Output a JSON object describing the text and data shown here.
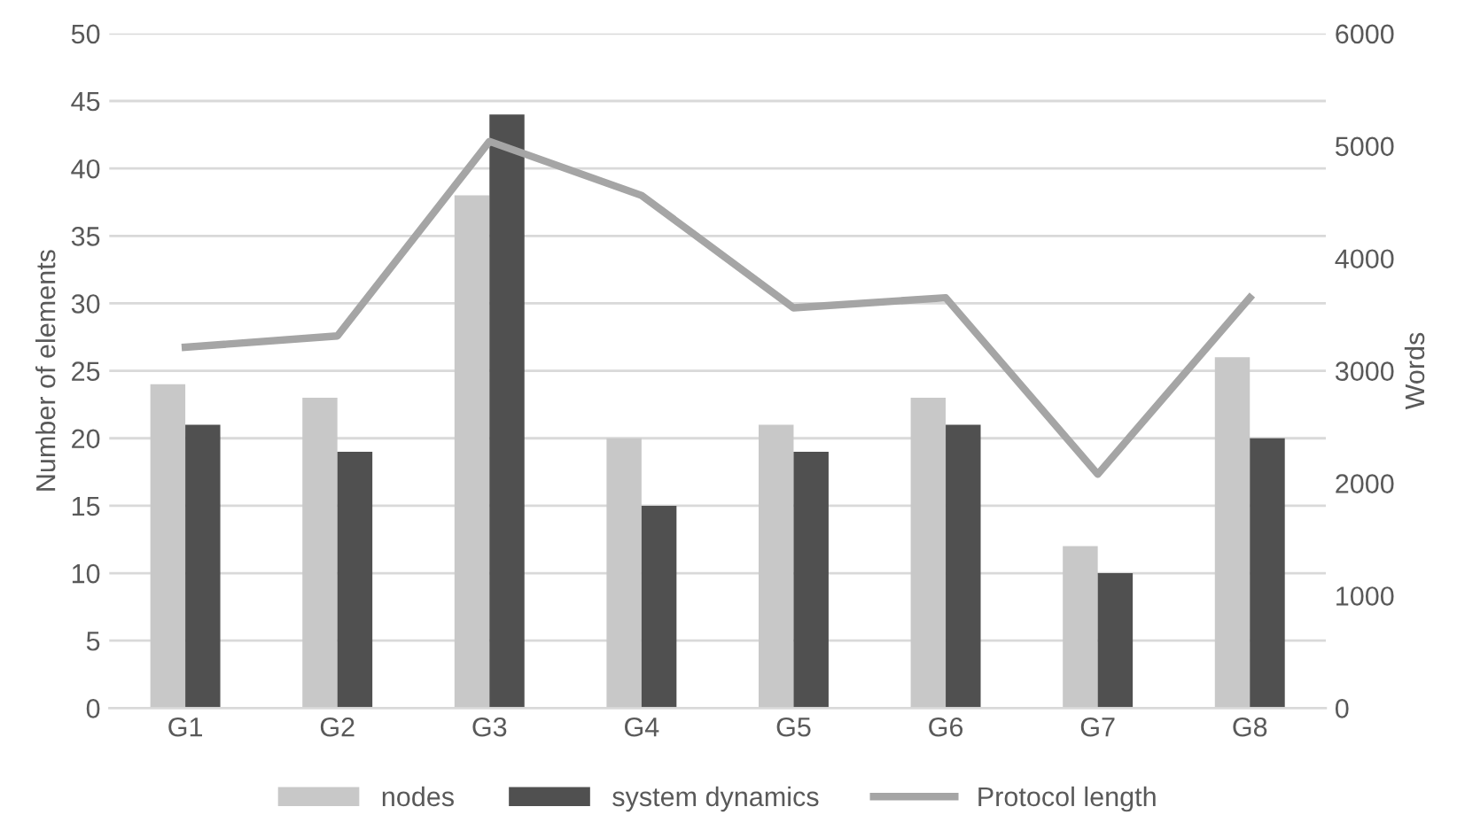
{
  "chart_data": {
    "type": "bar",
    "ylabel": "Number of elements",
    "y2label": "Words",
    "categories": [
      "G1",
      "G2",
      "G3",
      "G4",
      "G5",
      "G6",
      "G7",
      "G8"
    ],
    "series": [
      {
        "name": "nodes",
        "color": "#c8c8c8",
        "values": [
          24,
          23,
          38,
          20,
          21,
          23,
          12,
          26
        ]
      },
      {
        "name": "system dynamics",
        "color": "#505050",
        "values": [
          21,
          19,
          44,
          15,
          19,
          21,
          10,
          20
        ]
      },
      {
        "name": "Protocol length",
        "type": "line",
        "axis": "y2",
        "color": "#a5a5a5",
        "values": [
          3210,
          3310,
          5040,
          4560,
          3560,
          3650,
          2080,
          3650
        ]
      }
    ],
    "ylim": [
      0,
      50
    ],
    "yticks": [
      0,
      5,
      10,
      15,
      20,
      25,
      30,
      35,
      40,
      45,
      50
    ],
    "y2lim": [
      0,
      6000
    ],
    "y2ticks": [
      0,
      1000,
      2000,
      3000,
      4000,
      5000,
      6000
    ],
    "grid": "y",
    "legend": "bottom",
    "marker": "none"
  }
}
